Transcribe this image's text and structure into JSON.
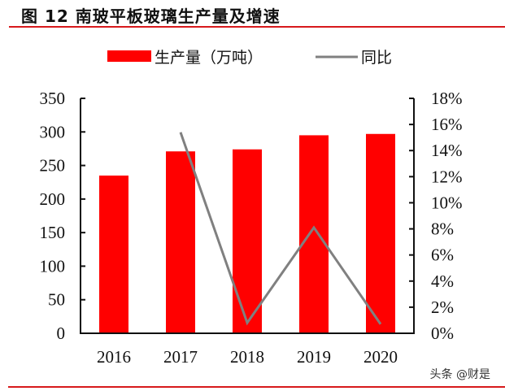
{
  "header": {
    "title": "图 12 南玻平板玻璃生产量及增速"
  },
  "watermark": "头条 @财是",
  "colors": {
    "accent_red": "#d7191c",
    "bar": "#ff0000",
    "line": "#808080",
    "axis": "#111111"
  },
  "chart_data": {
    "type": "bar+line",
    "title": "图 12 南玻平板玻璃生产量及增速",
    "categories": [
      "2016",
      "2017",
      "2018",
      "2019",
      "2020"
    ],
    "series": [
      {
        "name": "生产量（万吨）",
        "type": "bar",
        "axis": "left",
        "values": [
          235,
          271,
          274,
          295,
          297
        ]
      },
      {
        "name": "同比",
        "type": "line",
        "axis": "right",
        "values": [
          null,
          15.4,
          0.8,
          8.1,
          0.7
        ],
        "unit": "%"
      }
    ],
    "left_axis": {
      "ylim": [
        0,
        350
      ],
      "ticks": [
        "0",
        "50",
        "100",
        "150",
        "200",
        "250",
        "300",
        "350"
      ]
    },
    "right_axis": {
      "ylim": [
        0,
        18
      ],
      "ticks": [
        "0%",
        "2%",
        "4%",
        "6%",
        "8%",
        "10%",
        "12%",
        "14%",
        "16%",
        "18%"
      ]
    },
    "legend": {
      "position": "top",
      "entries": [
        "生产量（万吨）",
        "同比"
      ]
    },
    "grid": false,
    "xlabel": "",
    "ylabel": ""
  }
}
